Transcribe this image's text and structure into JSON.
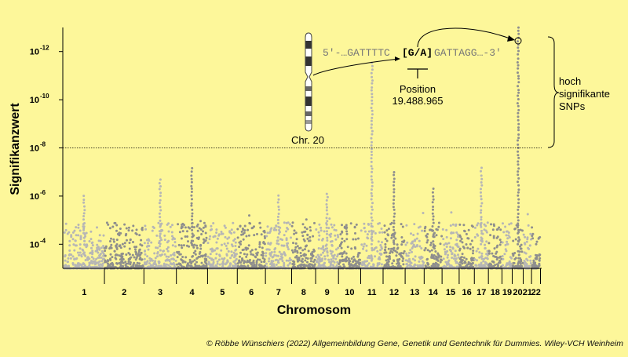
{
  "chart_data": {
    "type": "scatter",
    "xlabel": "Chromosom",
    "ylabel": "Signifikanzwert",
    "y_scale": "log (inverted, smaller p-values plotted higher)",
    "y_ticks": [
      {
        "base": "10",
        "exp": "-4",
        "value": 0.0001
      },
      {
        "base": "10",
        "exp": "-6",
        "value": 1e-06
      },
      {
        "base": "10",
        "exp": "-8",
        "value": 1e-08
      },
      {
        "base": "10",
        "exp": "-10",
        "value": 1e-10
      },
      {
        "base": "10",
        "exp": "-12",
        "value": 1e-12
      }
    ],
    "ylim": [
      0.001,
      1e-13
    ],
    "significance_threshold": 1e-08,
    "chromosomes": [
      "1",
      "2",
      "3",
      "4",
      "5",
      "6",
      "7",
      "8",
      "9",
      "10",
      "11",
      "12",
      "13",
      "14",
      "15",
      "16",
      "17",
      "18",
      "19",
      "20",
      "21",
      "22"
    ],
    "peaks": [
      {
        "chromosome": "1",
        "p": 1e-06
      },
      {
        "chromosome": "3",
        "p": 2e-07
      },
      {
        "chromosome": "4",
        "p": 7e-08
      },
      {
        "chromosome": "7",
        "p": 1e-06
      },
      {
        "chromosome": "9",
        "p": 8e-07
      },
      {
        "chromosome": "11",
        "p": 3e-12
      },
      {
        "chromosome": "12",
        "p": 1e-07
      },
      {
        "chromosome": "14",
        "p": 5e-07
      },
      {
        "chromosome": "17",
        "p": 7e-08
      },
      {
        "chromosome": "20",
        "p": 1e-13
      }
    ],
    "colors": {
      "light": "#b6b6b6",
      "dark": "#8e8e8e",
      "background": "#fdf79a"
    }
  },
  "annotations": {
    "sequence_prefix": "5'-…GATTTTC",
    "sequence_variant": "[G/A]",
    "sequence_suffix": "GATTAGG…-3'",
    "position_label": "Position",
    "position_value": "19.488.965",
    "chromosome_label": "Chr. 20",
    "bracket_label_lines": [
      "hoch",
      "signifikante",
      "SNPs"
    ]
  },
  "copyright": "© Röbbe Wünschiers (2022) Allgemeinbildung Gene, Genetik und Gentechnik für Dummies. Wiley-VCH Weinheim"
}
